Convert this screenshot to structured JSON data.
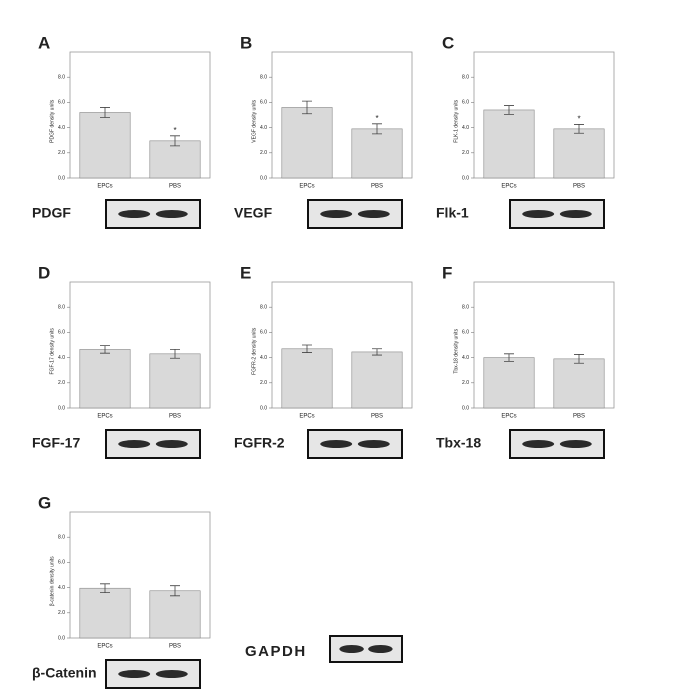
{
  "chart_data": [
    {
      "type": "bar",
      "panel": "A",
      "ylabel": "PDGF density units",
      "blot_label": "PDGF",
      "categories": [
        "EPCs",
        "PBS"
      ],
      "values": [
        5.2,
        2.95
      ],
      "errors": [
        0.4,
        0.4
      ],
      "color": "#d9d9d9",
      "annotations": [
        {
          "text": "*",
          "category": "PBS"
        }
      ],
      "ylim": [
        0,
        10
      ],
      "yticks": [
        {
          "value": 0,
          "label": "0.0"
        },
        {
          "value": 2,
          "label": "2.0"
        },
        {
          "value": 4,
          "label": "4.0"
        },
        {
          "value": 6,
          "label": "6.0"
        },
        {
          "value": 8,
          "label": "8.0"
        }
      ]
    },
    {
      "type": "bar",
      "panel": "B",
      "ylabel": "VEGF density units",
      "blot_label": "VEGF",
      "categories": [
        "EPCs",
        "PBS"
      ],
      "values": [
        5.6,
        3.9
      ],
      "errors": [
        0.5,
        0.4
      ],
      "color": "#d9d9d9",
      "annotations": [
        {
          "text": "*",
          "category": "PBS"
        }
      ],
      "ylim": [
        0,
        10
      ],
      "yticks": [
        {
          "value": 0,
          "label": "0.0"
        },
        {
          "value": 2,
          "label": "2.0"
        },
        {
          "value": 4,
          "label": "4.0"
        },
        {
          "value": 6,
          "label": "6.0"
        },
        {
          "value": 8,
          "label": "8.0"
        }
      ]
    },
    {
      "type": "bar",
      "panel": "C",
      "ylabel": "FLK-1 density units",
      "blot_label": "Flk-1",
      "categories": [
        "EPCs",
        "PBS"
      ],
      "values": [
        5.4,
        3.9
      ],
      "errors": [
        0.35,
        0.35
      ],
      "color": "#d9d9d9",
      "annotations": [
        {
          "text": "*",
          "category": "PBS"
        }
      ],
      "ylim": [
        0,
        10
      ],
      "yticks": [
        {
          "value": 0,
          "label": "0.0"
        },
        {
          "value": 2,
          "label": "2.0"
        },
        {
          "value": 4,
          "label": "4.0"
        },
        {
          "value": 6,
          "label": "6.0"
        },
        {
          "value": 8,
          "label": "8.0"
        }
      ]
    },
    {
      "type": "bar",
      "panel": "D",
      "ylabel": "FGF-17 density units",
      "blot_label": "FGF-17",
      "categories": [
        "EPCs",
        "PBS"
      ],
      "values": [
        4.65,
        4.3
      ],
      "errors": [
        0.3,
        0.35
      ],
      "color": "#d9d9d9",
      "ylim": [
        0,
        10
      ],
      "yticks": [
        {
          "value": 0,
          "label": "0.0"
        },
        {
          "value": 2,
          "label": "2.0"
        },
        {
          "value": 4,
          "label": "4.0"
        },
        {
          "value": 6,
          "label": "6.0"
        },
        {
          "value": 8,
          "label": "8.0"
        }
      ]
    },
    {
      "type": "bar",
      "panel": "E",
      "ylabel": "FGFR-2 density units",
      "blot_label": "FGFR-2",
      "categories": [
        "EPCs",
        "PBS"
      ],
      "values": [
        4.7,
        4.45
      ],
      "errors": [
        0.3,
        0.25
      ],
      "color": "#d9d9d9",
      "ylim": [
        0,
        10
      ],
      "yticks": [
        {
          "value": 0,
          "label": "0.0"
        },
        {
          "value": 2,
          "label": "2.0"
        },
        {
          "value": 4,
          "label": "4.0"
        },
        {
          "value": 6,
          "label": "6.0"
        },
        {
          "value": 8,
          "label": "8.0"
        }
      ]
    },
    {
      "type": "bar",
      "panel": "F",
      "ylabel": "Tbx-18 density units",
      "blot_label": "Tbx-18",
      "categories": [
        "EPCs",
        "PBS"
      ],
      "values": [
        4.0,
        3.9
      ],
      "errors": [
        0.3,
        0.35
      ],
      "color": "#d9d9d9",
      "ylim": [
        0,
        10
      ],
      "yticks": [
        {
          "value": 0,
          "label": "0.0"
        },
        {
          "value": 2,
          "label": "2.0"
        },
        {
          "value": 4,
          "label": "4.0"
        },
        {
          "value": 6,
          "label": "6.0"
        },
        {
          "value": 8,
          "label": "8.0"
        }
      ]
    },
    {
      "type": "bar",
      "panel": "G",
      "ylabel": "β-catenin density units",
      "blot_label": "β-Catenin",
      "categories": [
        "EPCs",
        "PBS"
      ],
      "values": [
        3.95,
        3.75
      ],
      "errors": [
        0.35,
        0.4
      ],
      "color": "#d9d9d9",
      "ylim": [
        0,
        10
      ],
      "yticks": [
        {
          "value": 0,
          "label": "0.0"
        },
        {
          "value": 2,
          "label": "2.0"
        },
        {
          "value": 4,
          "label": "4.0"
        },
        {
          "value": 6,
          "label": "6.0"
        },
        {
          "value": 8,
          "label": "8.0"
        }
      ]
    }
  ],
  "loading_control_label": "GAPDH"
}
